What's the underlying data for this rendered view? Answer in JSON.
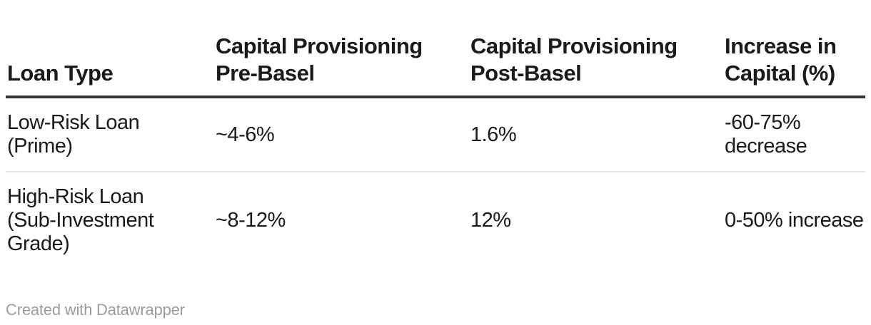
{
  "chart_data": {
    "type": "table",
    "columns": [
      "Loan Type",
      "Capital Provisioning Pre-Basel",
      "Capital Provisioning Post-Basel",
      "Increase in Capital (%)"
    ],
    "rows": [
      [
        "Low-Risk Loan (Prime)",
        "~4-6%",
        "1.6%",
        "-60-75% decrease"
      ],
      [
        "High-Risk Loan (Sub-Investment Grade)",
        "~8-12%",
        "12%",
        "0-50% increase"
      ]
    ]
  },
  "table": {
    "columns": [
      {
        "label": "Loan Type"
      },
      {
        "label": "Capital Provisioning\nPre-Basel"
      },
      {
        "label": "Capital Provisioning\nPost-Basel"
      },
      {
        "label": "Increase in\nCapital (%)"
      }
    ],
    "rows": [
      {
        "cells": [
          "Low-Risk Loan\n(Prime)",
          "~4-6%",
          "1.6%",
          "-60-75%\ndecrease"
        ]
      },
      {
        "cells": [
          "High-Risk Loan\n(Sub-Investment\nGrade)",
          "~8-12%",
          "12%",
          "0-50% increase"
        ]
      }
    ]
  },
  "footer": {
    "credit": "Created with Datawrapper"
  },
  "colors": {
    "background": "#ffffff",
    "text": "#1a1a1a",
    "header_rule": "#333333",
    "row_divider": "#e8e8e8",
    "credit_text": "#9c9c9c"
  }
}
